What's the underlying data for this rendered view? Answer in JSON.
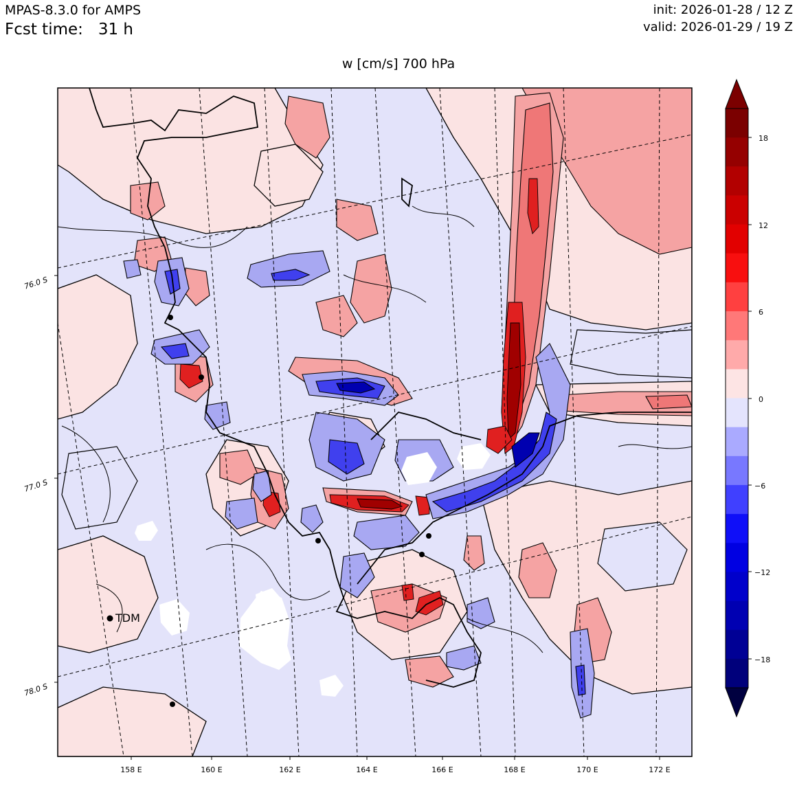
{
  "header": {
    "model": "MPAS-8.3.0 for AMPS",
    "fcst_label": "Fcst time:",
    "fcst_value": "31 h",
    "init": "init: 2026-01-28 / 12 Z",
    "valid": "valid: 2026-01-29 / 19 Z"
  },
  "plot_title": "w [cm/s]    700 hPa",
  "map": {
    "lon_labels": [
      "158 E",
      "160 E",
      "162 E",
      "164 E",
      "166 E",
      "168 E",
      "170 E",
      "172 E"
    ],
    "lat_labels": [
      "76.0 S",
      "77.0 S",
      "78.0 S"
    ],
    "stations": [
      {
        "label": "TDM"
      }
    ],
    "colors": {
      "light_pink": "#fbe3e3",
      "pink": "#f5a3a3",
      "salmon": "#ef7777",
      "red": "#e02020",
      "dark_red": "#a00000",
      "light_blue": "#e3e3fa",
      "lavender": "#a8a8f2",
      "blue": "#4040ee",
      "dark_blue": "#0000b0"
    }
  },
  "colorbar": {
    "tick_labels": [
      "18",
      "12",
      "6",
      "0",
      "−6",
      "−12",
      "−18"
    ],
    "colors_top_to_bottom": [
      "#7b0000",
      "#950000",
      "#b20000",
      "#cb0000",
      "#e20000",
      "#f80f0f",
      "#ff4040",
      "#ff7878",
      "#ffaaaa",
      "#fde4e4",
      "#e4e4fd",
      "#aaaaff",
      "#7878ff",
      "#4040ff",
      "#0f0ff8",
      "#0000e2",
      "#0000cb",
      "#0000b2",
      "#000095",
      "#00007b"
    ],
    "extend_top": "#7b0000",
    "extend_bottom": "#000040"
  }
}
